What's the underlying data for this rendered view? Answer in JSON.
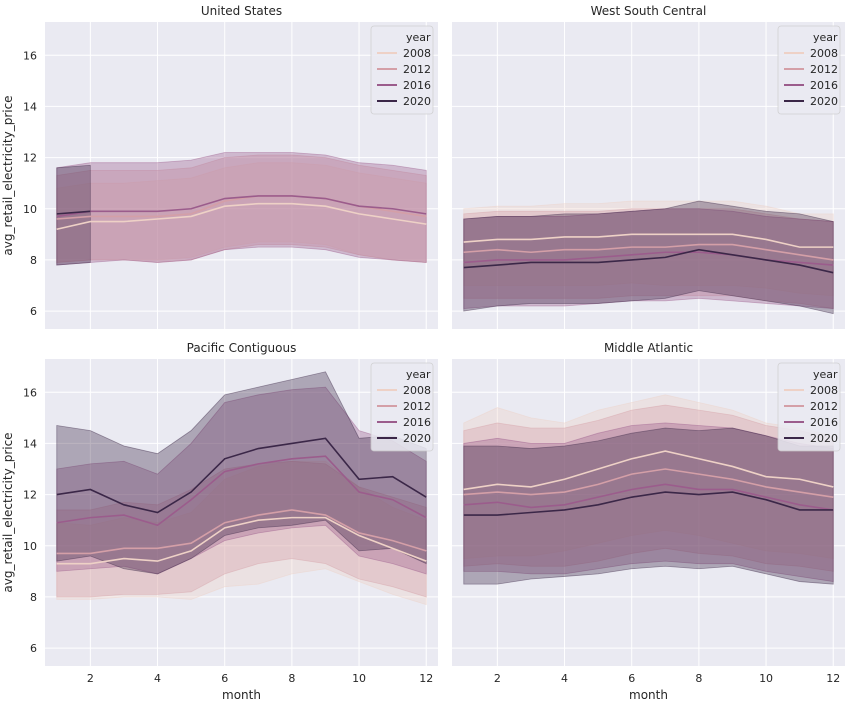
{
  "chart_data": {
    "type": "line",
    "facets": [
      {
        "title": "United States",
        "ylabel": "avg_retail_electricity_price",
        "xlabel": "",
        "series": [
          {
            "name": "2008",
            "months": [
              1,
              2,
              3,
              4,
              5,
              6,
              7,
              8,
              9,
              10,
              11,
              12
            ],
            "values": [
              9.2,
              9.5,
              9.5,
              9.6,
              9.7,
              10.1,
              10.2,
              10.2,
              10.1,
              9.8,
              9.6,
              9.4
            ],
            "band_lo": [
              7.9,
              8.0,
              8.0,
              8.0,
              8.1,
              8.5,
              8.7,
              8.7,
              8.6,
              8.2,
              8.0,
              7.9
            ],
            "band_hi": [
              10.8,
              11.0,
              11.0,
              11.1,
              11.2,
              11.6,
              11.8,
              11.8,
              11.7,
              11.4,
              11.2,
              11.0
            ]
          },
          {
            "name": "2012",
            "months": [
              1,
              2,
              3,
              4,
              5,
              6,
              7,
              8,
              9,
              10,
              11,
              12
            ],
            "values": [
              9.6,
              9.7,
              9.7,
              9.7,
              9.8,
              10.3,
              10.5,
              10.5,
              10.4,
              10.1,
              9.9,
              9.7
            ],
            "band_lo": [
              7.9,
              8.0,
              8.0,
              7.9,
              8.0,
              8.4,
              8.6,
              8.6,
              8.5,
              8.2,
              8.0,
              7.9
            ],
            "band_hi": [
              11.3,
              11.5,
              11.5,
              11.5,
              11.6,
              12.0,
              12.1,
              12.1,
              12.0,
              11.7,
              11.5,
              11.3
            ]
          },
          {
            "name": "2016",
            "months": [
              1,
              2,
              3,
              4,
              5,
              6,
              7,
              8,
              9,
              10,
              11,
              12
            ],
            "values": [
              9.7,
              9.9,
              9.9,
              9.9,
              10.0,
              10.4,
              10.5,
              10.5,
              10.4,
              10.1,
              10.0,
              9.8
            ],
            "band_lo": [
              7.8,
              7.9,
              8.0,
              7.9,
              8.0,
              8.4,
              8.5,
              8.5,
              8.4,
              8.1,
              8.0,
              7.9
            ],
            "band_hi": [
              11.6,
              11.8,
              11.8,
              11.8,
              11.9,
              12.2,
              12.2,
              12.2,
              12.1,
              11.8,
              11.7,
              11.5
            ]
          },
          {
            "name": "2020",
            "months": [
              1,
              2
            ],
            "values": [
              9.8,
              9.9
            ],
            "band_lo": [
              7.8,
              7.9
            ],
            "band_hi": [
              11.6,
              11.7
            ]
          }
        ]
      },
      {
        "title": "West South Central",
        "ylabel": "",
        "xlabel": "",
        "series": [
          {
            "name": "2008",
            "months": [
              1,
              2,
              3,
              4,
              5,
              6,
              7,
              8,
              9,
              10,
              11,
              12
            ],
            "values": [
              8.7,
              8.8,
              8.8,
              8.9,
              8.9,
              9.0,
              9.0,
              9.0,
              9.0,
              8.8,
              8.5,
              8.5
            ],
            "band_lo": [
              7.0,
              7.0,
              7.0,
              7.0,
              7.0,
              7.1,
              7.0,
              7.0,
              7.0,
              6.9,
              6.7,
              6.6
            ],
            "band_hi": [
              10.0,
              10.1,
              10.1,
              10.2,
              10.2,
              10.3,
              10.3,
              10.3,
              10.3,
              10.1,
              9.8,
              9.8
            ]
          },
          {
            "name": "2012",
            "months": [
              1,
              2,
              3,
              4,
              5,
              6,
              7,
              8,
              9,
              10,
              11,
              12
            ],
            "values": [
              8.3,
              8.4,
              8.3,
              8.4,
              8.4,
              8.5,
              8.5,
              8.6,
              8.6,
              8.4,
              8.2,
              8.0
            ],
            "band_lo": [
              6.5,
              6.5,
              6.5,
              6.5,
              6.5,
              6.6,
              6.6,
              6.6,
              6.6,
              6.4,
              6.3,
              6.1
            ],
            "band_hi": [
              9.8,
              9.9,
              9.9,
              9.9,
              9.9,
              10.0,
              10.0,
              10.0,
              10.0,
              9.8,
              9.6,
              9.5
            ]
          },
          {
            "name": "2016",
            "months": [
              1,
              2,
              3,
              4,
              5,
              6,
              7,
              8,
              9,
              10,
              11,
              12
            ],
            "values": [
              7.9,
              8.0,
              8.0,
              8.0,
              8.1,
              8.2,
              8.3,
              8.3,
              8.2,
              8.0,
              7.9,
              7.8
            ],
            "band_lo": [
              6.1,
              6.2,
              6.2,
              6.2,
              6.3,
              6.4,
              6.4,
              6.5,
              6.4,
              6.3,
              6.2,
              6.1
            ],
            "band_hi": [
              9.6,
              9.7,
              9.7,
              9.7,
              9.8,
              9.9,
              10.0,
              10.0,
              9.9,
              9.7,
              9.6,
              9.5
            ]
          },
          {
            "name": "2020",
            "months": [
              1,
              2,
              3,
              4,
              5,
              6,
              7,
              8,
              9,
              10,
              11,
              12
            ],
            "values": [
              7.7,
              7.8,
              7.9,
              7.9,
              7.9,
              8.0,
              8.1,
              8.4,
              8.2,
              8.0,
              7.8,
              7.5
            ],
            "band_lo": [
              6.0,
              6.2,
              6.3,
              6.3,
              6.3,
              6.4,
              6.5,
              6.8,
              6.6,
              6.4,
              6.2,
              5.9
            ],
            "band_hi": [
              9.6,
              9.7,
              9.7,
              9.8,
              9.8,
              9.9,
              10.0,
              10.3,
              10.1,
              9.9,
              9.8,
              9.5
            ]
          }
        ]
      },
      {
        "title": "Pacific Contiguous",
        "ylabel": "avg_retail_electricity_price",
        "xlabel": "month",
        "series": [
          {
            "name": "2008",
            "months": [
              1,
              2,
              3,
              4,
              5,
              6,
              7,
              8,
              9,
              10,
              11,
              12
            ],
            "values": [
              9.3,
              9.3,
              9.5,
              9.4,
              9.8,
              10.7,
              11.0,
              11.1,
              11.1,
              10.4,
              9.9,
              9.4
            ],
            "band_lo": [
              7.9,
              7.9,
              8.0,
              8.0,
              7.9,
              8.4,
              8.5,
              8.9,
              9.1,
              8.6,
              8.1,
              7.7
            ],
            "band_hi": [
              10.9,
              10.8,
              11.1,
              10.9,
              11.3,
              12.6,
              13.1,
              13.3,
              13.3,
              12.3,
              11.5,
              11.0
            ]
          },
          {
            "name": "2012",
            "months": [
              1,
              2,
              3,
              4,
              5,
              6,
              7,
              8,
              9,
              10,
              11,
              12
            ],
            "values": [
              9.7,
              9.7,
              9.9,
              9.9,
              10.1,
              10.9,
              11.2,
              11.4,
              11.2,
              10.5,
              10.2,
              9.8
            ],
            "band_lo": [
              8.0,
              8.0,
              8.1,
              8.1,
              8.2,
              8.9,
              9.3,
              9.5,
              9.3,
              8.7,
              8.4,
              8.0
            ],
            "band_hi": [
              11.4,
              11.4,
              11.7,
              11.6,
              12.2,
              13.0,
              13.2,
              13.3,
              13.2,
              12.3,
              11.9,
              11.5
            ]
          },
          {
            "name": "2016",
            "months": [
              1,
              2,
              3,
              4,
              5,
              6,
              7,
              8,
              9,
              10,
              11,
              12
            ],
            "values": [
              10.9,
              11.1,
              11.2,
              10.8,
              11.8,
              12.9,
              13.2,
              13.4,
              13.5,
              12.1,
              11.8,
              11.1
            ],
            "band_lo": [
              9.0,
              9.1,
              9.2,
              8.9,
              9.5,
              10.2,
              10.5,
              10.7,
              10.8,
              9.6,
              9.3,
              8.9
            ],
            "band_hi": [
              13.0,
              13.2,
              13.3,
              12.8,
              14.0,
              15.6,
              15.9,
              16.1,
              16.2,
              14.5,
              14.1,
              13.3
            ]
          },
          {
            "name": "2020",
            "months": [
              1,
              2,
              3,
              4,
              5,
              6,
              7,
              8,
              9,
              10,
              11,
              12
            ],
            "values": [
              12.0,
              12.2,
              11.6,
              11.3,
              12.1,
              13.4,
              13.8,
              14.0,
              14.2,
              12.6,
              12.7,
              11.9
            ],
            "band_lo": [
              9.4,
              9.6,
              9.1,
              8.9,
              9.5,
              10.4,
              10.7,
              10.8,
              11.0,
              9.8,
              9.9,
              9.3
            ],
            "band_hi": [
              14.7,
              14.5,
              13.9,
              13.6,
              14.5,
              15.9,
              16.2,
              16.5,
              16.8,
              14.2,
              14.3,
              13.8
            ]
          }
        ]
      },
      {
        "title": "Middle Atlantic",
        "ylabel": "",
        "xlabel": "month",
        "series": [
          {
            "name": "2008",
            "months": [
              1,
              2,
              3,
              4,
              5,
              6,
              7,
              8,
              9,
              10,
              11,
              12
            ],
            "values": [
              12.2,
              12.4,
              12.3,
              12.6,
              13.0,
              13.4,
              13.7,
              13.4,
              13.1,
              12.7,
              12.6,
              12.3
            ],
            "band_lo": [
              9.5,
              9.6,
              9.6,
              9.8,
              10.1,
              10.4,
              10.6,
              10.4,
              10.1,
              9.8,
              9.7,
              9.5
            ],
            "band_hi": [
              14.8,
              15.4,
              15.0,
              14.8,
              15.3,
              15.6,
              15.9,
              15.6,
              15.3,
              14.8,
              14.6,
              14.3
            ]
          },
          {
            "name": "2012",
            "months": [
              1,
              2,
              3,
              4,
              5,
              6,
              7,
              8,
              9,
              10,
              11,
              12
            ],
            "values": [
              12.0,
              12.1,
              12.0,
              12.1,
              12.4,
              12.8,
              13.0,
              12.8,
              12.6,
              12.3,
              12.1,
              11.9
            ],
            "band_lo": [
              9.2,
              9.3,
              9.2,
              9.2,
              9.4,
              9.7,
              9.9,
              9.7,
              9.6,
              9.3,
              9.2,
              9.0
            ],
            "band_hi": [
              14.5,
              14.8,
              14.6,
              14.6,
              14.9,
              15.3,
              15.5,
              15.3,
              15.1,
              14.7,
              14.5,
              14.2
            ]
          },
          {
            "name": "2016",
            "months": [
              1,
              2,
              3,
              4,
              5,
              6,
              7,
              8,
              9,
              10,
              11,
              12
            ],
            "values": [
              11.6,
              11.7,
              11.5,
              11.6,
              11.9,
              12.2,
              12.4,
              12.2,
              12.2,
              11.9,
              11.6,
              11.4
            ],
            "band_lo": [
              9.0,
              9.0,
              8.9,
              8.9,
              9.1,
              9.3,
              9.4,
              9.3,
              9.3,
              9.0,
              8.8,
              8.6
            ],
            "band_hi": [
              14.0,
              14.2,
              14.0,
              14.0,
              14.4,
              14.7,
              14.8,
              14.7,
              14.6,
              14.3,
              14.0,
              13.8
            ]
          },
          {
            "name": "2020",
            "months": [
              1,
              2,
              3,
              4,
              5,
              6,
              7,
              8,
              9,
              10,
              11,
              12
            ],
            "values": [
              11.2,
              11.2,
              11.3,
              11.4,
              11.6,
              11.9,
              12.1,
              12.0,
              12.1,
              11.8,
              11.4,
              11.4
            ],
            "band_lo": [
              8.5,
              8.5,
              8.7,
              8.8,
              8.9,
              9.1,
              9.2,
              9.1,
              9.2,
              8.9,
              8.6,
              8.5
            ],
            "band_hi": [
              13.9,
              13.9,
              13.8,
              13.9,
              14.1,
              14.4,
              14.6,
              14.5,
              14.6,
              14.3,
              13.9,
              13.9
            ]
          }
        ]
      }
    ],
    "xlim": [
      0.65,
      12.35
    ],
    "ylim": [
      5.3,
      17.3
    ],
    "xticks": [
      2,
      4,
      6,
      8,
      10,
      12
    ],
    "yticks": [
      6,
      8,
      10,
      12,
      14,
      16
    ],
    "legend": {
      "title": "year",
      "placement": "top-right",
      "entries": [
        "2008",
        "2012",
        "2016",
        "2020"
      ]
    },
    "grid": true,
    "sharey": true,
    "sharex": true
  },
  "colors": {
    "2008": "#eed1c6",
    "2012": "#d49fa7",
    "2016": "#9b5c8c",
    "2020": "#3b2748"
  }
}
